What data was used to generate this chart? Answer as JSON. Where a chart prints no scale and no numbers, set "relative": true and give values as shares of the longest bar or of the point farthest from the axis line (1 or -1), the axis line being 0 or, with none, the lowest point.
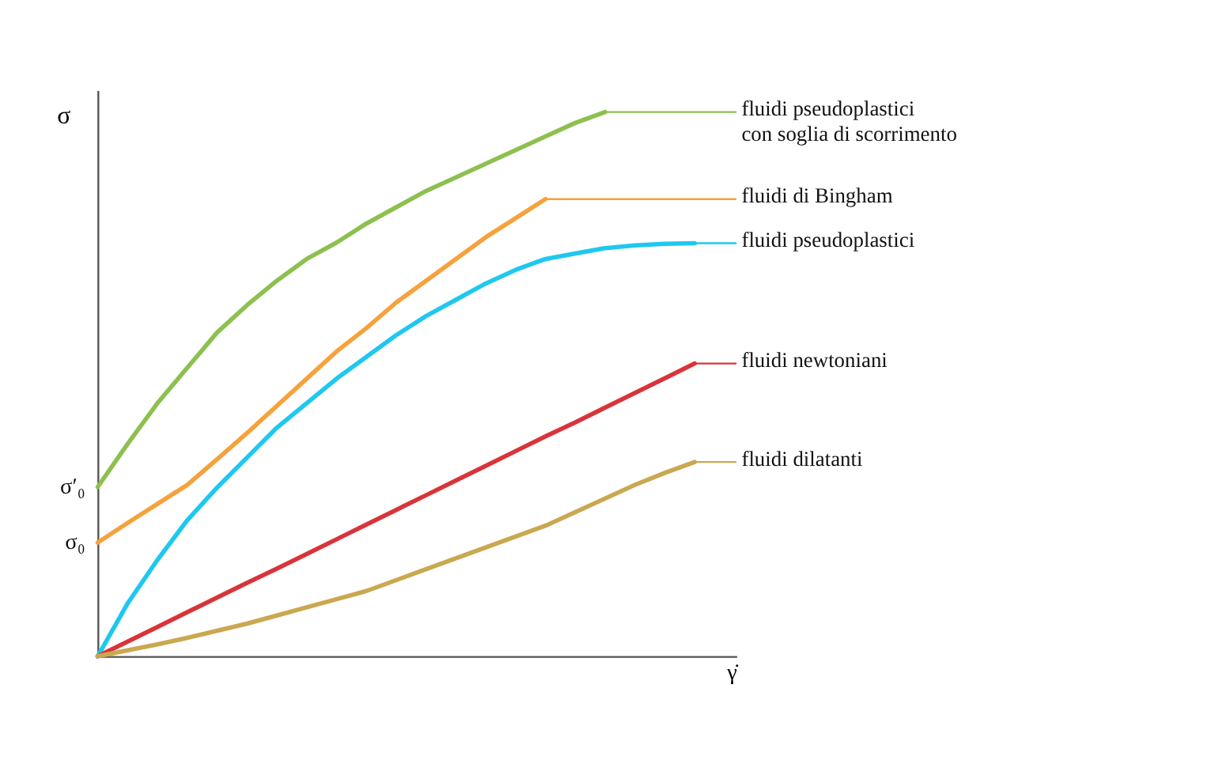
{
  "chart_data": {
    "type": "line",
    "relative": true,
    "xlabel": "γ̇",
    "ylabel": "σ",
    "marker": "none",
    "line_style": "solid",
    "legend": "right",
    "categories": [
      null,
      null,
      null,
      null,
      null,
      null,
      null,
      null,
      null,
      null,
      null,
      null,
      null,
      null,
      null,
      null,
      null,
      null,
      null,
      null,
      null
    ],
    "series": [
      {
        "name": "fluidi pseudoplastici\ncon soglia di scorrimento",
        "color": "#8dc04f",
        "values": [
          0.311,
          0.39,
          0.465,
          0.53,
          0.595,
          0.645,
          0.69,
          0.73,
          0.76,
          0.795,
          0.825,
          0.855,
          0.88,
          0.905,
          0.93,
          0.955,
          0.98,
          1.0,
          null,
          null,
          null
        ]
      },
      {
        "name": "fluidi di Bingham",
        "color": "#f6a23c",
        "values": [
          0.209,
          0.245,
          0.28,
          0.315,
          0.362,
          0.41,
          0.46,
          0.51,
          0.56,
          0.603,
          0.65,
          0.69,
          0.73,
          0.77,
          0.805,
          0.84,
          null,
          null,
          null,
          null,
          null
        ]
      },
      {
        "name": "fluidi pseudoplastici",
        "color": "#1ec8ef",
        "values": [
          0,
          0.097,
          0.177,
          0.25,
          0.31,
          0.365,
          0.42,
          0.465,
          0.51,
          0.55,
          0.59,
          0.625,
          0.655,
          0.685,
          0.71,
          0.73,
          0.74,
          0.75,
          0.755,
          0.758,
          0.759
        ]
      },
      {
        "name": "fluidi newtoniani",
        "color": "#d9343a",
        "values": [
          0,
          0.027,
          0.054,
          0.081,
          0.108,
          0.135,
          0.161,
          0.188,
          0.215,
          0.242,
          0.269,
          0.296,
          0.323,
          0.35,
          0.377,
          0.404,
          0.43,
          0.457,
          0.484,
          0.511,
          0.538
        ]
      },
      {
        "name": "fluidi dilatanti",
        "color": "#c9a850",
        "values": [
          0,
          0.011,
          0.022,
          0.034,
          0.047,
          0.06,
          0.075,
          0.09,
          0.105,
          0.12,
          0.14,
          0.16,
          0.18,
          0.2,
          0.22,
          0.24,
          0.265,
          0.29,
          0.315,
          0.337,
          0.357
        ]
      }
    ],
    "annotations": [
      "σ′₀",
      "σ₀"
    ]
  }
}
